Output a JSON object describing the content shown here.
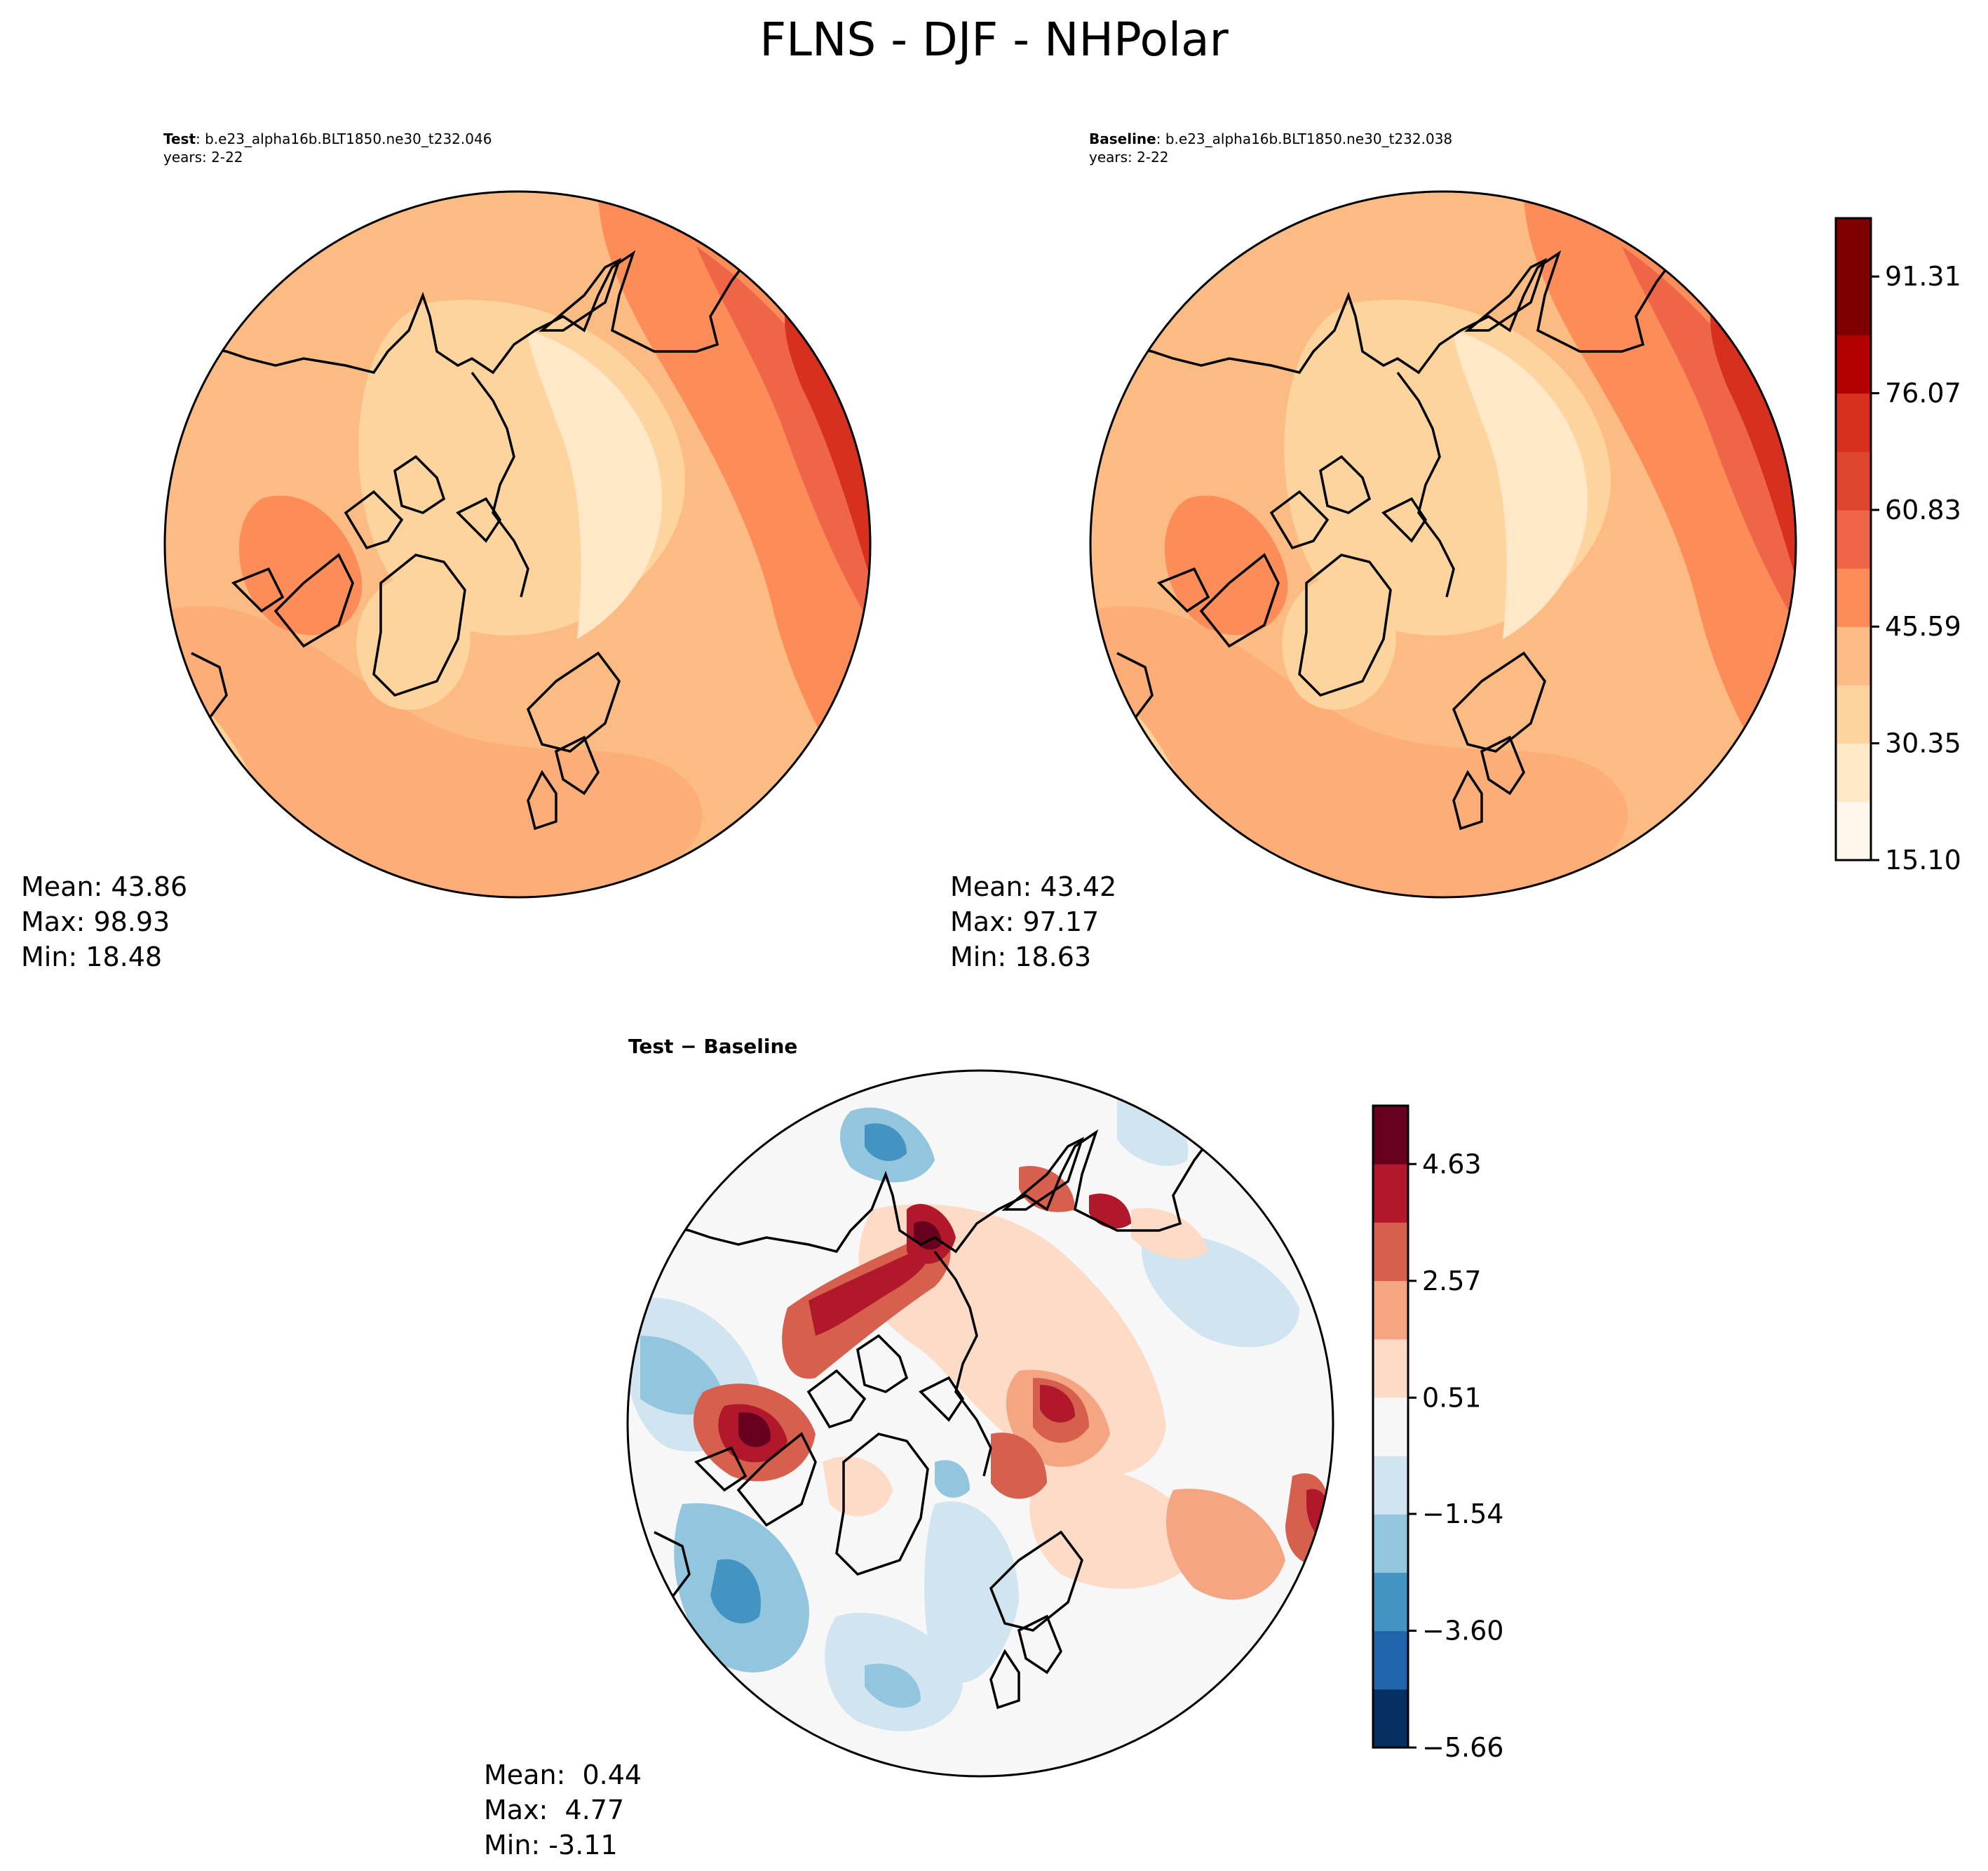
{
  "title": "FLNS - DJF - NHPolar",
  "test": {
    "label_bold": "Test",
    "case": ": b.e23_alpha16b.BLT1850.ne30_t232.046",
    "years": "years: 2-22",
    "mean": "Mean: 43.86",
    "max": "Max: 98.93",
    "min": "Min: 18.48"
  },
  "baseline": {
    "label_bold": "Baseline",
    "case": ": b.e23_alpha16b.BLT1850.ne30_t232.038",
    "years": "years: 2-22",
    "mean": "Mean: 43.42",
    "max": "Max: 97.17",
    "min": "Min: 18.63"
  },
  "diff": {
    "label": "Test − Baseline",
    "mean": "Mean:  0.44",
    "max": "Max:  4.77",
    "min": "Min: -3.11"
  },
  "colorbar_main": {
    "colormap": "OrRd",
    "range": [
      15.1,
      98.93
    ],
    "tick_values": [
      15.1,
      30.35,
      45.59,
      60.83,
      76.07,
      91.31
    ],
    "tick_labels": [
      "15.10",
      "30.35",
      "45.59",
      "60.83",
      "76.07",
      "91.31"
    ],
    "colors": [
      "#fff7ec",
      "#fee8c8",
      "#fdd49e",
      "#fdbb84",
      "#fc8d59",
      "#ef6548",
      "#e04530",
      "#d7301f",
      "#b30000",
      "#7f0000",
      "#7f0000"
    ]
  },
  "colorbar_diff": {
    "colormap": "RdBu_r",
    "range": [
      -5.66,
      5.66
    ],
    "tick_values": [
      -5.66,
      -3.6,
      -1.54,
      0.51,
      2.57,
      4.63
    ],
    "tick_labels": [
      "−5.66",
      "−3.60",
      "−1.54",
      "0.51",
      "2.57",
      "4.63"
    ],
    "colors": [
      "#053061",
      "#2166ac",
      "#4393c3",
      "#92c5de",
      "#d1e5f0",
      "#f7f7f7",
      "#fddbc7",
      "#f4a582",
      "#d6604d",
      "#b2182b",
      "#67001f"
    ]
  }
}
